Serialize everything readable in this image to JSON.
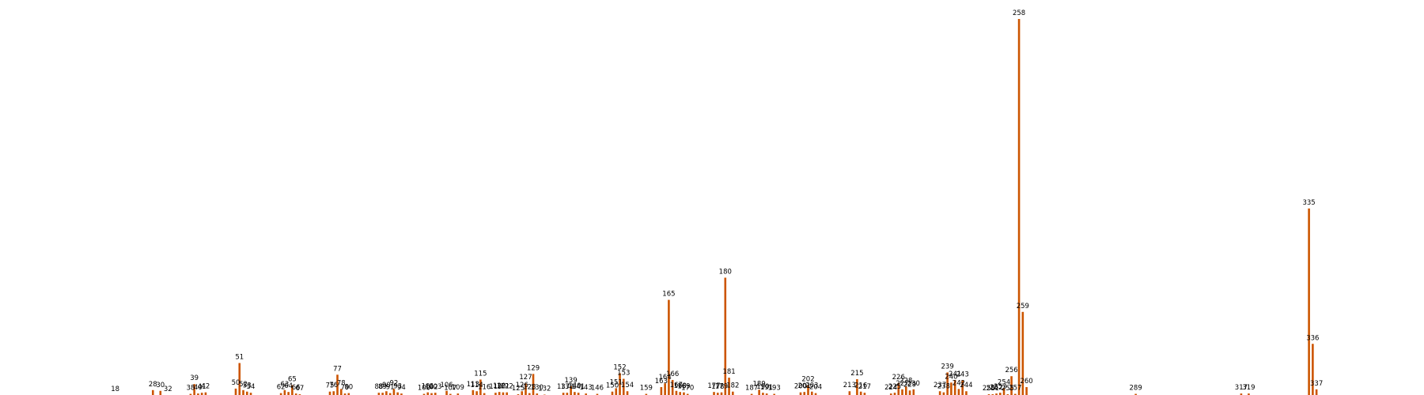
{
  "chart_data": {
    "type": "bar",
    "title": "",
    "xlabel": "",
    "ylabel": "",
    "x_range": [
      0,
      360
    ],
    "ylim": [
      0,
      1
    ],
    "grid": false,
    "bar_color": "#cc5500",
    "bars": [
      {
        "x": 18,
        "value": 0.0
      },
      {
        "x": 28,
        "value": 0.013
      },
      {
        "x": 30,
        "value": 0.011
      },
      {
        "x": 32,
        "value": 0.0
      },
      {
        "x": 38,
        "value": 0.003
      },
      {
        "x": 39,
        "value": 0.029
      },
      {
        "x": 40,
        "value": 0.004
      },
      {
        "x": 41,
        "value": 0.006
      },
      {
        "x": 42,
        "value": 0.007
      },
      {
        "x": 50,
        "value": 0.017
      },
      {
        "x": 51,
        "value": 0.085
      },
      {
        "x": 52,
        "value": 0.013
      },
      {
        "x": 53,
        "value": 0.009
      },
      {
        "x": 54,
        "value": 0.006
      },
      {
        "x": 62,
        "value": 0.005
      },
      {
        "x": 63,
        "value": 0.013
      },
      {
        "x": 64,
        "value": 0.008
      },
      {
        "x": 65,
        "value": 0.026
      },
      {
        "x": 66,
        "value": 0.004
      },
      {
        "x": 67,
        "value": 0.002
      },
      {
        "x": 75,
        "value": 0.009
      },
      {
        "x": 76,
        "value": 0.01
      },
      {
        "x": 77,
        "value": 0.054
      },
      {
        "x": 78,
        "value": 0.016
      },
      {
        "x": 79,
        "value": 0.004
      },
      {
        "x": 80,
        "value": 0.005
      },
      {
        "x": 88,
        "value": 0.006
      },
      {
        "x": 89,
        "value": 0.006
      },
      {
        "x": 90,
        "value": 0.01
      },
      {
        "x": 91,
        "value": 0.005
      },
      {
        "x": 92,
        "value": 0.016
      },
      {
        "x": 93,
        "value": 0.007
      },
      {
        "x": 94,
        "value": 0.004
      },
      {
        "x": 100,
        "value": 0.003
      },
      {
        "x": 101,
        "value": 0.007
      },
      {
        "x": 102,
        "value": 0.005
      },
      {
        "x": 103,
        "value": 0.006
      },
      {
        "x": 106,
        "value": 0.011
      },
      {
        "x": 107,
        "value": 0.003
      },
      {
        "x": 109,
        "value": 0.004
      },
      {
        "x": 113,
        "value": 0.013
      },
      {
        "x": 114,
        "value": 0.01
      },
      {
        "x": 115,
        "value": 0.041
      },
      {
        "x": 116,
        "value": 0.005
      },
      {
        "x": 119,
        "value": 0.006
      },
      {
        "x": 120,
        "value": 0.008
      },
      {
        "x": 121,
        "value": 0.007
      },
      {
        "x": 122,
        "value": 0.007
      },
      {
        "x": 125,
        "value": 0.002
      },
      {
        "x": 126,
        "value": 0.01
      },
      {
        "x": 127,
        "value": 0.031
      },
      {
        "x": 128,
        "value": 0.005
      },
      {
        "x": 129,
        "value": 0.056
      },
      {
        "x": 130,
        "value": 0.004
      },
      {
        "x": 132,
        "value": 0.001
      },
      {
        "x": 137,
        "value": 0.006
      },
      {
        "x": 138,
        "value": 0.006
      },
      {
        "x": 139,
        "value": 0.023
      },
      {
        "x": 140,
        "value": 0.008
      },
      {
        "x": 141,
        "value": 0.006
      },
      {
        "x": 143,
        "value": 0.004
      },
      {
        "x": 146,
        "value": 0.003
      },
      {
        "x": 150,
        "value": 0.009
      },
      {
        "x": 151,
        "value": 0.018
      },
      {
        "x": 152,
        "value": 0.058
      },
      {
        "x": 153,
        "value": 0.043
      },
      {
        "x": 154,
        "value": 0.01
      },
      {
        "x": 159,
        "value": 0.003
      },
      {
        "x": 163,
        "value": 0.021
      },
      {
        "x": 164,
        "value": 0.031
      },
      {
        "x": 165,
        "value": 0.253
      },
      {
        "x": 166,
        "value": 0.04
      },
      {
        "x": 167,
        "value": 0.011
      },
      {
        "x": 168,
        "value": 0.008
      },
      {
        "x": 169,
        "value": 0.007
      },
      {
        "x": 170,
        "value": 0.003
      },
      {
        "x": 177,
        "value": 0.008
      },
      {
        "x": 178,
        "value": 0.006
      },
      {
        "x": 179,
        "value": 0.007
      },
      {
        "x": 180,
        "value": 0.312
      },
      {
        "x": 181,
        "value": 0.046
      },
      {
        "x": 182,
        "value": 0.009
      },
      {
        "x": 187,
        "value": 0.003
      },
      {
        "x": 189,
        "value": 0.014
      },
      {
        "x": 190,
        "value": 0.006
      },
      {
        "x": 191,
        "value": 0.004
      },
      {
        "x": 193,
        "value": 0.003
      },
      {
        "x": 200,
        "value": 0.007
      },
      {
        "x": 201,
        "value": 0.008
      },
      {
        "x": 202,
        "value": 0.026
      },
      {
        "x": 203,
        "value": 0.009
      },
      {
        "x": 204,
        "value": 0.005
      },
      {
        "x": 213,
        "value": 0.01
      },
      {
        "x": 215,
        "value": 0.042
      },
      {
        "x": 216,
        "value": 0.009
      },
      {
        "x": 217,
        "value": 0.006
      },
      {
        "x": 224,
        "value": 0.004
      },
      {
        "x": 225,
        "value": 0.006
      },
      {
        "x": 226,
        "value": 0.032
      },
      {
        "x": 227,
        "value": 0.015
      },
      {
        "x": 228,
        "value": 0.022
      },
      {
        "x": 229,
        "value": 0.012
      },
      {
        "x": 230,
        "value": 0.015
      },
      {
        "x": 237,
        "value": 0.01
      },
      {
        "x": 238,
        "value": 0.007
      },
      {
        "x": 239,
        "value": 0.06
      },
      {
        "x": 240,
        "value": 0.033
      },
      {
        "x": 241,
        "value": 0.04
      },
      {
        "x": 242,
        "value": 0.016
      },
      {
        "x": 243,
        "value": 0.039
      },
      {
        "x": 244,
        "value": 0.01
      },
      {
        "x": 250,
        "value": 0.002
      },
      {
        "x": 251,
        "value": 0.002
      },
      {
        "x": 252,
        "value": 0.004
      },
      {
        "x": 253,
        "value": 0.006
      },
      {
        "x": 254,
        "value": 0.018
      },
      {
        "x": 255,
        "value": 0.002
      },
      {
        "x": 256,
        "value": 0.05
      },
      {
        "x": 257,
        "value": 0.003
      },
      {
        "x": 258,
        "value": 1.0
      },
      {
        "x": 259,
        "value": 0.221
      },
      {
        "x": 260,
        "value": 0.021
      },
      {
        "x": 289,
        "value": 0.003
      },
      {
        "x": 317,
        "value": 0.004
      },
      {
        "x": 319,
        "value": 0.004
      },
      {
        "x": 335,
        "value": 0.496
      },
      {
        "x": 336,
        "value": 0.136
      },
      {
        "x": 337,
        "value": 0.015
      }
    ]
  }
}
